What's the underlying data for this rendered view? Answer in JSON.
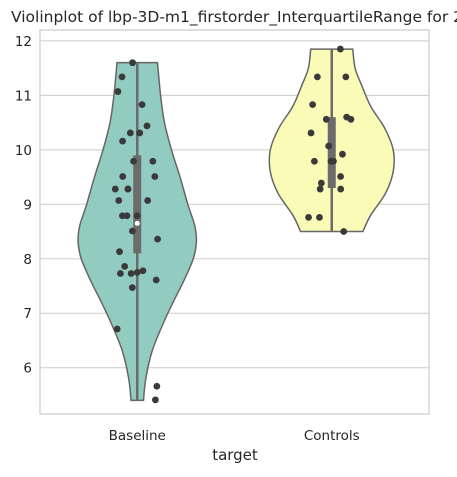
{
  "chart_data": {
    "type": "violin",
    "title": "Violinplot of lbp-3D-m1_firstorder_InterquartileRange for 2",
    "xlabel": "target",
    "ylabel": "",
    "categories": [
      "Baseline",
      "Controls"
    ],
    "ylim": [
      5.15,
      12.2
    ],
    "yticks": [
      6,
      7,
      8,
      9,
      10,
      11,
      12
    ],
    "grid": true,
    "colors": {
      "Baseline": "#92cbbf",
      "Controls": "#fbfbb8",
      "points": "#3a3a3a",
      "box": "#6b6b6b",
      "outline": "#666666"
    },
    "violins": [
      {
        "category": "Baseline",
        "min": 5.4,
        "max": 11.6,
        "q1": 8.1,
        "median": 8.65,
        "q3": 9.9,
        "profile": [
          [
            5.4,
            0.08
          ],
          [
            5.8,
            0.11
          ],
          [
            6.3,
            0.19
          ],
          [
            6.8,
            0.33
          ],
          [
            7.2,
            0.46
          ],
          [
            7.6,
            0.6
          ],
          [
            8.0,
            0.72
          ],
          [
            8.3,
            0.76
          ],
          [
            8.6,
            0.74
          ],
          [
            9.0,
            0.65
          ],
          [
            9.5,
            0.55
          ],
          [
            10.0,
            0.44
          ],
          [
            10.5,
            0.35
          ],
          [
            11.0,
            0.3
          ],
          [
            11.6,
            0.26
          ]
        ],
        "points": [
          5.41,
          5.66,
          6.71,
          7.47,
          7.61,
          7.73,
          7.73,
          7.75,
          7.78,
          7.86,
          8.13,
          8.36,
          8.51,
          8.79,
          8.79,
          8.79,
          9.07,
          9.07,
          9.28,
          9.28,
          9.28,
          9.51,
          9.51,
          9.79,
          9.79,
          10.16,
          10.31,
          10.31,
          10.44,
          10.83,
          11.07,
          11.34,
          11.6
        ]
      },
      {
        "category": "Controls",
        "min": 8.5,
        "max": 11.85,
        "q1": 9.3,
        "median": 9.8,
        "q3": 10.6,
        "profile": [
          [
            8.5,
            0.4
          ],
          [
            8.8,
            0.5
          ],
          [
            9.2,
            0.69
          ],
          [
            9.6,
            0.79
          ],
          [
            10.0,
            0.79
          ],
          [
            10.4,
            0.68
          ],
          [
            10.8,
            0.5
          ],
          [
            11.2,
            0.38
          ],
          [
            11.5,
            0.3
          ],
          [
            11.85,
            0.27
          ]
        ],
        "points": [
          8.5,
          8.76,
          8.76,
          9.28,
          9.28,
          9.39,
          9.51,
          9.79,
          9.79,
          9.79,
          9.92,
          10.07,
          10.31,
          10.56,
          10.56,
          10.6,
          10.83,
          11.34,
          11.34,
          11.85
        ]
      }
    ]
  }
}
